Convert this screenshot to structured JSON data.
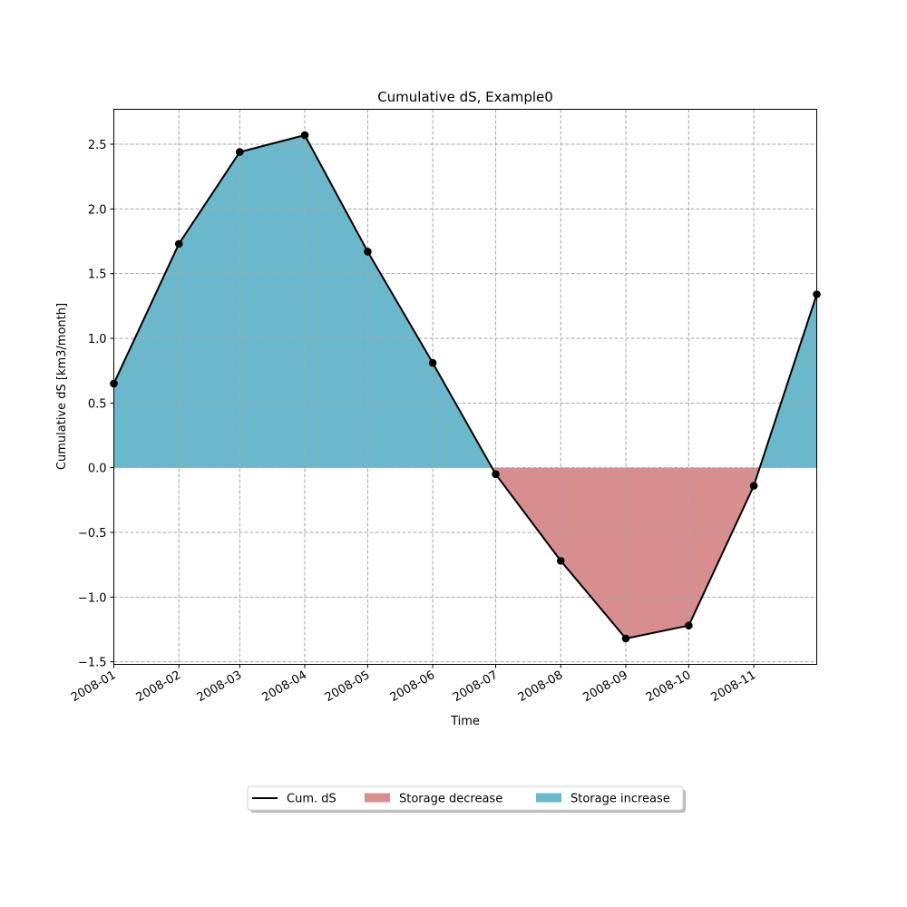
{
  "chart_data": {
    "type": "line",
    "title": "Cumulative dS, Example0",
    "xlabel": "Time",
    "ylabel": "Cumulative dS [km3/month]",
    "x": [
      "2008-01-01",
      "2008-02-01",
      "2008-03-01",
      "2008-04-01",
      "2008-05-01",
      "2008-06-01",
      "2008-07-01",
      "2008-08-01",
      "2008-09-01",
      "2008-10-01",
      "2008-11-01",
      "2008-12-01"
    ],
    "series": [
      {
        "name": "Cum. dS",
        "values": [
          0.65,
          1.73,
          2.44,
          2.57,
          1.67,
          0.81,
          -0.05,
          -0.72,
          -1.32,
          -1.22,
          -0.14,
          1.34
        ]
      }
    ],
    "xlim": [
      "2008-01-01",
      "2008-12-01"
    ],
    "ylim": [
      -1.52,
      2.77
    ],
    "x_tick_labels": [
      "2008-01",
      "2008-02",
      "2008-03",
      "2008-04",
      "2008-05",
      "2008-06",
      "2008-07",
      "2008-08",
      "2008-09",
      "2008-10",
      "2008-11"
    ],
    "y_ticks": [
      -1.5,
      -1.0,
      -0.5,
      0.0,
      0.5,
      1.0,
      1.5,
      2.0,
      2.5
    ],
    "y_tick_labels": [
      "−1.5",
      "−1.0",
      "−0.5",
      "0.0",
      "0.5",
      "1.0",
      "1.5",
      "2.0",
      "2.5"
    ],
    "grid": true,
    "legend_position": "bottom-center",
    "legend": [
      {
        "label": "Cum. dS",
        "kind": "line",
        "color": "#000000"
      },
      {
        "label": "Storage decrease",
        "kind": "patch",
        "color": "#d88d8f"
      },
      {
        "label": "Storage increase",
        "kind": "patch",
        "color": "#6bb7cb"
      }
    ],
    "colors": {
      "increase": "#6bb7cb",
      "decrease": "#d88d8f",
      "line": "#000000",
      "grid": "#a8a8a8"
    }
  }
}
